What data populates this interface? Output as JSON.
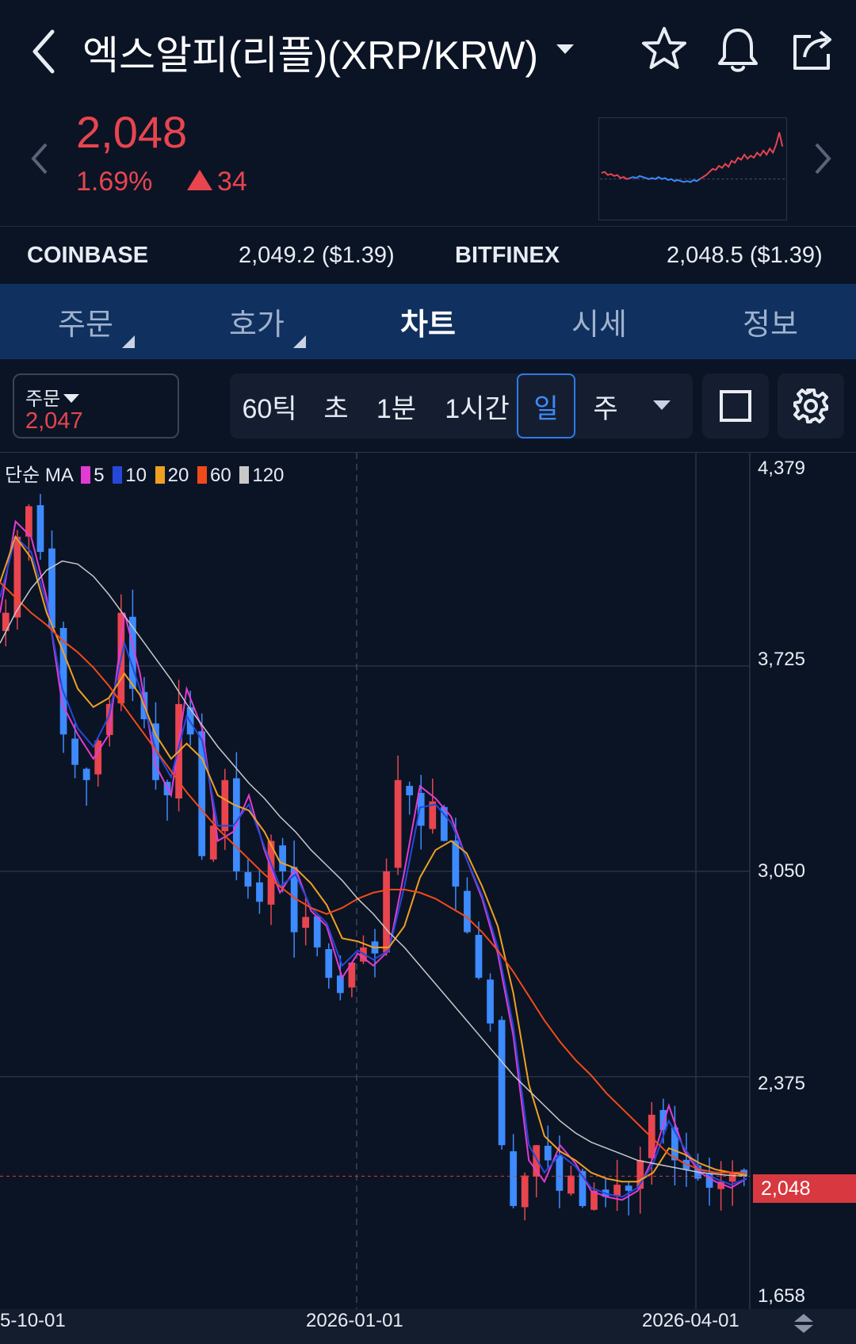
{
  "header": {
    "title": "엑스알피(리플)(XRP/KRW)",
    "icons": [
      "back-icon",
      "chevron-down-icon",
      "star-icon",
      "bell-icon",
      "share-icon"
    ]
  },
  "price": {
    "current": "2,048",
    "change_pct": "1.69%",
    "change_abs": "34",
    "color_up": "#e8454f",
    "color_down": "#3d8bff"
  },
  "mini_chart": {
    "type": "line",
    "values": [
      0.46,
      0.47,
      0.44,
      0.45,
      0.43,
      0.44,
      0.41,
      0.42,
      0.4,
      0.41,
      0.42,
      0.41,
      0.43,
      0.42,
      0.41,
      0.4,
      0.41,
      0.4,
      0.42,
      0.4,
      0.41,
      0.39,
      0.4,
      0.38,
      0.39,
      0.38,
      0.37,
      0.38,
      0.37,
      0.39,
      0.38,
      0.4,
      0.42,
      0.44,
      0.47,
      0.5,
      0.49,
      0.53,
      0.51,
      0.55,
      0.52,
      0.58,
      0.56,
      0.61,
      0.59,
      0.64,
      0.6,
      0.63,
      0.61,
      0.66,
      0.63,
      0.68,
      0.64,
      0.7,
      0.66,
      0.74,
      0.86,
      0.72
    ],
    "down_segment_end": 31
  },
  "exchanges": [
    {
      "name": "COINBASE",
      "value": "2,049.2 ($1.39)"
    },
    {
      "name": "BITFINEX",
      "value": "2,048.5 ($1.39)"
    }
  ],
  "tabs": [
    {
      "label": "주문",
      "has_corner": true
    },
    {
      "label": "호가",
      "has_corner": true
    },
    {
      "label": "차트",
      "active": true
    },
    {
      "label": "시세"
    },
    {
      "label": "정보"
    }
  ],
  "toolbar": {
    "order_label": "주문",
    "order_value": "2,047",
    "intervals": [
      "60틱",
      "초",
      "1분",
      "1시간",
      "일",
      "주"
    ],
    "active_interval": "일",
    "icons": [
      "chevron-down-icon",
      "square-icon",
      "gear-icon"
    ]
  },
  "ma_legend": {
    "label": "단순 MA",
    "items": [
      {
        "period": "5",
        "color": "#e23bd1"
      },
      {
        "period": "10",
        "color": "#2548d8"
      },
      {
        "period": "20",
        "color": "#f0a020"
      },
      {
        "period": "60",
        "color": "#f04a1a"
      },
      {
        "period": "120",
        "color": "#c8c8c8"
      }
    ]
  },
  "chart_data": {
    "type": "line",
    "title": "",
    "x_ticks": [
      "5-10-01",
      "2026-01-01",
      "2026-04-01"
    ],
    "y_ticks": [
      "4,379",
      "3,725",
      "3,050",
      "2,375",
      "1,658"
    ],
    "ylim": [
      1658,
      4379
    ],
    "current_price_label": "2,048",
    "current_price": 2048,
    "series": [
      {
        "name": "5",
        "color": "#e23bd1",
        "values": [
          3900,
          4200,
          4150,
          3950,
          3600,
          3500,
          3420,
          3500,
          3900,
          3700,
          3400,
          3300,
          3650,
          3520,
          3150,
          3180,
          3300,
          3120,
          2980,
          3060,
          2920,
          2870,
          2700,
          2780,
          2740,
          2790,
          3050,
          3330,
          3290,
          3230,
          3090,
          2960,
          2780,
          2510,
          2100,
          2030,
          2150,
          2090,
          2000,
          1980,
          1970,
          2000,
          2110,
          2280,
          2130,
          2060,
          2030,
          2010,
          2040
        ]
      },
      {
        "name": "10",
        "color": "#2548d8",
        "values": [
          3950,
          4150,
          4100,
          3930,
          3650,
          3520,
          3460,
          3560,
          3800,
          3650,
          3450,
          3360,
          3560,
          3480,
          3200,
          3200,
          3270,
          3130,
          3000,
          3040,
          2930,
          2880,
          2740,
          2790,
          2760,
          2790,
          3000,
          3260,
          3270,
          3210,
          3090,
          2970,
          2800,
          2540,
          2150,
          2060,
          2120,
          2080,
          2010,
          1990,
          1980,
          2010,
          2090,
          2230,
          2140,
          2070,
          2040,
          2020,
          2040
        ]
      },
      {
        "name": "20",
        "color": "#f0a020",
        "values": [
          4000,
          4150,
          4080,
          3900,
          3780,
          3650,
          3590,
          3620,
          3700,
          3630,
          3500,
          3420,
          3470,
          3420,
          3300,
          3270,
          3250,
          3180,
          3080,
          3060,
          3010,
          2940,
          2830,
          2820,
          2800,
          2800,
          2870,
          3030,
          3120,
          3150,
          3110,
          3000,
          2870,
          2650,
          2350,
          2180,
          2130,
          2100,
          2060,
          2040,
          2030,
          2030,
          2060,
          2140,
          2120,
          2090,
          2070,
          2060,
          2050
        ]
      },
      {
        "name": "60",
        "color": "#f04a1a",
        "values": [
          4000,
          3950,
          3900,
          3860,
          3810,
          3770,
          3720,
          3660,
          3590,
          3520,
          3450,
          3380,
          3310,
          3250,
          3190,
          3140,
          3090,
          3040,
          3000,
          2960,
          2930,
          2910,
          2930,
          2960,
          2980,
          2990,
          2990,
          2980,
          2960,
          2930,
          2900,
          2850,
          2790,
          2720,
          2640,
          2560,
          2490,
          2430,
          2380,
          2320,
          2270,
          2220,
          2170,
          2120,
          2090,
          2070,
          2060,
          2060,
          2060
        ]
      },
      {
        "name": "120",
        "color": "#c8c8c8",
        "values": [
          3800,
          3900,
          3980,
          4040,
          4070,
          4060,
          4020,
          3960,
          3890,
          3820,
          3750,
          3680,
          3600,
          3530,
          3460,
          3400,
          3340,
          3290,
          3230,
          3180,
          3120,
          3070,
          3020,
          2960,
          2910,
          2850,
          2800,
          2740,
          2680,
          2620,
          2560,
          2500,
          2440,
          2380,
          2330,
          2280,
          2230,
          2190,
          2160,
          2140,
          2120,
          2100,
          2090,
          2080,
          2070,
          2060,
          2055,
          2050,
          2048
        ]
      }
    ],
    "candles": {
      "closes": [
        3900,
        4150,
        4250,
        4100,
        3850,
        3500,
        3400,
        3350,
        3480,
        3600,
        3900,
        3650,
        3550,
        3350,
        3300,
        3600,
        3500,
        3100,
        3200,
        3350,
        3050,
        3000,
        2950,
        3150,
        3050,
        2850,
        2900,
        2800,
        2700,
        2650,
        2750,
        2800,
        2780,
        3050,
        3350,
        3300,
        3200,
        3280,
        3150,
        3000,
        2850,
        2700,
        2550,
        2150,
        1950,
        2050,
        2150,
        2100,
        2000,
        2050,
        1950,
        2000,
        1980,
        2020,
        2000,
        2100,
        2250,
        2200,
        2100,
        2070,
        2040,
        2010,
        2030,
        2060,
        2048
      ],
      "change_colors": {
        "up": "#e8454f",
        "down": "#3d8bff"
      }
    }
  }
}
